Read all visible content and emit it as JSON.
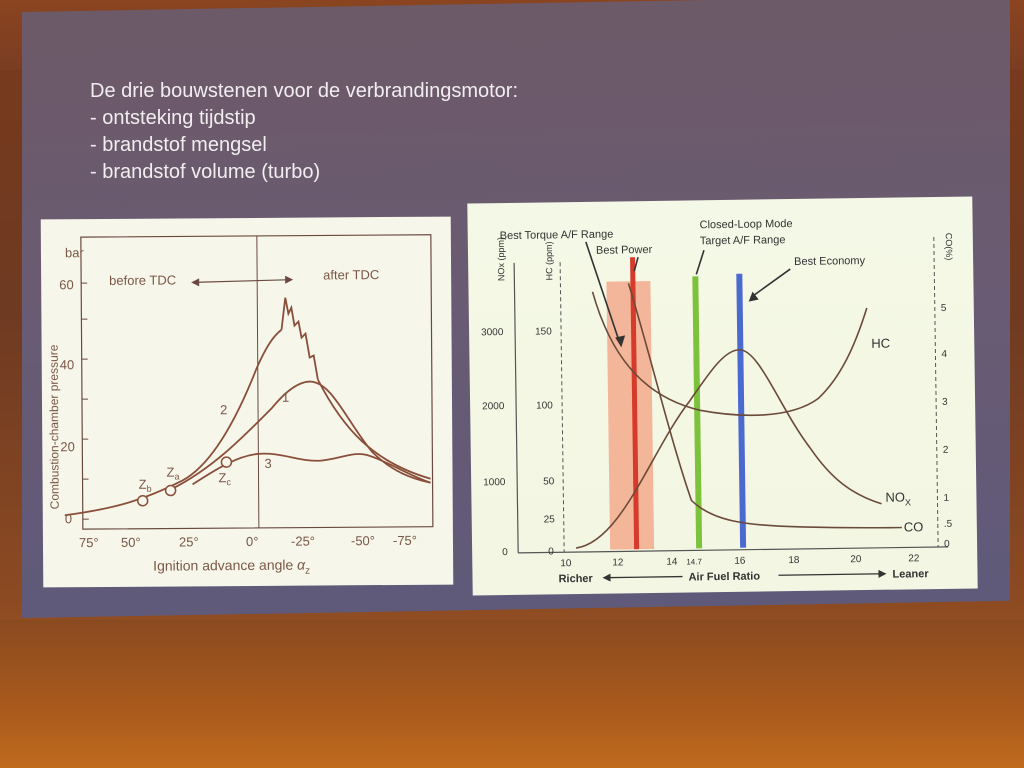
{
  "slide": {
    "title": "De drie bouwstenen voor de verbrandingsmotor:",
    "bullets": [
      "- ontsteking tijdstip",
      "- brandstof mengsel",
      "- brandstof volume (turbo)"
    ]
  },
  "left_chart": {
    "unit": "bar",
    "ylabel": "Combustion-chamber pressure",
    "xlabel": "Ignition advance angle",
    "xlabel_symbol": "α",
    "xlabel_sub": "z",
    "before": "before TDC",
    "after": "after TDC",
    "yticks": [
      "0",
      "20",
      "40",
      "60"
    ],
    "xticks": [
      "75°",
      "50°",
      "25°",
      "0°",
      "-25°",
      "-50°",
      "-75°"
    ],
    "curve_labels": [
      "1",
      "2",
      "3"
    ],
    "points": [
      {
        "label": "Z",
        "sub": "b"
      },
      {
        "label": "Z",
        "sub": "a"
      },
      {
        "label": "Z",
        "sub": "c"
      }
    ]
  },
  "right_chart": {
    "annotations": {
      "best_torque": "Best Torque A/F Range",
      "best_power": "Best Power",
      "closed_loop_1": "Closed-Loop Mode",
      "closed_loop_2": "Target A/F Range",
      "best_economy": "Best Economy"
    },
    "axis_labels": {
      "nox": "NOx (ppm)",
      "hc": "HC (ppm)",
      "co": "CO(%)"
    },
    "nox_ticks": [
      "0",
      "1000",
      "2000",
      "3000"
    ],
    "hc_ticks": [
      "0",
      "25",
      "50",
      "100",
      "150"
    ],
    "co_ticks": [
      "0",
      ".5",
      "1",
      "2",
      "3",
      "4",
      "5"
    ],
    "xticks": [
      "10",
      "12",
      "14",
      "14.7",
      "16",
      "18",
      "20",
      "22"
    ],
    "richer": "Richer",
    "axis_title": "Air Fuel Ratio",
    "leaner": "Leaner",
    "curve_labels": {
      "hc": "HC",
      "nox": "NO",
      "nox_sub": "X",
      "co": "CO"
    },
    "colors": {
      "power_band": "#f4a080",
      "power_line": "#d63a2a",
      "stoich_line": "#7cc23a",
      "economy_line": "#4a6ad0"
    }
  }
}
